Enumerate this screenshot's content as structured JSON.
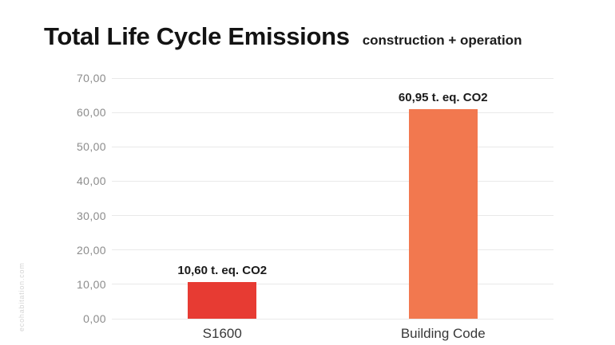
{
  "header": {
    "title": "Total Life Cycle Emissions",
    "subtitle": "construction + operation"
  },
  "watermark": "ecohabitation.com",
  "colors": {
    "bar_s1600": "#e73b33",
    "bar_building_code": "#f2784f",
    "gridline": "#e9e9e9",
    "y_tick_label": "#8c8c8c",
    "x_category_label": "#383838",
    "value_label": "#1a1a1a",
    "title": "#131313",
    "watermark": "#d5d5d5",
    "background": "#ffffff"
  },
  "chart_data": {
    "type": "bar",
    "title": "Total Life Cycle Emissions",
    "subtitle": "construction + operation",
    "categories": [
      "S1600",
      "Building Code"
    ],
    "values": [
      10.6,
      60.95
    ],
    "value_labels": [
      "10,60 t. eq. CO2",
      "60,95 t. eq. CO2"
    ],
    "bar_colors": [
      "#e73b33",
      "#f2784f"
    ],
    "xlabel": "",
    "ylabel": "",
    "ylim": [
      0,
      70
    ],
    "ytick_step": 10,
    "ytick_labels": [
      "0,00",
      "10,00",
      "20,00",
      "30,00",
      "40,00",
      "50,00",
      "60,00",
      "70,00"
    ],
    "grid": true,
    "legend": false,
    "unit": "t. eq. CO2"
  }
}
